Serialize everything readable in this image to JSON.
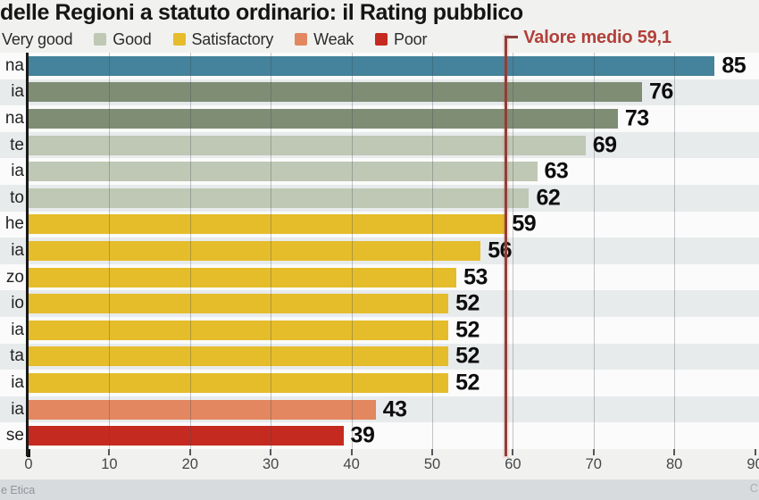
{
  "title": "delle Regioni a statuto ordinario: il Rating pubblico",
  "legend": {
    "items": [
      {
        "label": "Very good",
        "color": null
      },
      {
        "label": "Good",
        "color": "#BEC8B4"
      },
      {
        "label": "Satisfactory",
        "color": "#E5BC2A"
      },
      {
        "label": "Weak",
        "color": "#E2875F"
      },
      {
        "label": "Poor",
        "color": "#C52A20"
      }
    ]
  },
  "mean_line": {
    "label": "Valore medio 59,1",
    "value": 59.1,
    "line_color": "#8E3F3A",
    "text_color": "#B2403B"
  },
  "chart_data": {
    "type": "bar",
    "orientation": "horizontal",
    "title": "delle Regioni a statuto ordinario: il Rating pubblico",
    "categories": [
      "na",
      "ia",
      "na",
      "te",
      "ia",
      "to",
      "he",
      "ia",
      "zo",
      "io",
      "ia",
      "ta",
      "ia",
      "ia",
      "se"
    ],
    "values": [
      85,
      76,
      73,
      69,
      63,
      62,
      59,
      56,
      53,
      52,
      52,
      52,
      52,
      43,
      39
    ],
    "ratings": [
      "excellent",
      "very_good",
      "very_good",
      "good",
      "good",
      "good",
      "satisfactory",
      "satisfactory",
      "satisfactory",
      "satisfactory",
      "satisfactory",
      "satisfactory",
      "satisfactory",
      "weak",
      "poor"
    ],
    "palette": {
      "excellent": "#45829B",
      "very_good": "#7F8D75",
      "good": "#BEC8B4",
      "satisfactory": "#E5BC2A",
      "weak": "#E2875F",
      "poor": "#C52A20"
    },
    "xlim": [
      0,
      90
    ],
    "x_ticks": [
      0,
      10,
      20,
      30,
      40,
      50,
      60,
      70,
      80,
      90
    ],
    "grid": true,
    "mean": 59.1,
    "legend_position": "top"
  },
  "footer": {
    "source": "e Etica",
    "right_credit": "C"
  }
}
